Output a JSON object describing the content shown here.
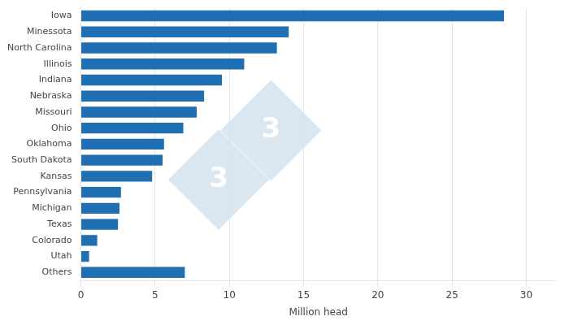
{
  "chart_data": {
    "type": "bar",
    "orientation": "horizontal",
    "categories": [
      "Iowa",
      "Minessota",
      "North Carolina",
      "Illinois",
      "Indiana",
      "Nebraska",
      "Missouri",
      "Ohio",
      "Oklahoma",
      "South Dakota",
      "Kansas",
      "Pennsylvania",
      "Michigan",
      "Texas",
      "Colorado",
      "Utah",
      "Others"
    ],
    "values": [
      28.5,
      14.0,
      13.2,
      11.0,
      9.5,
      8.3,
      7.8,
      6.9,
      5.6,
      5.5,
      4.8,
      2.7,
      2.6,
      2.5,
      1.1,
      0.55,
      7.0
    ],
    "color": "#1f6fb2",
    "xlabel": "Million head",
    "xlim": [
      0,
      32
    ],
    "xticks": [
      0,
      5,
      10,
      15,
      20,
      25,
      30
    ],
    "grid": true,
    "annotations": [
      "3",
      "3"
    ]
  }
}
